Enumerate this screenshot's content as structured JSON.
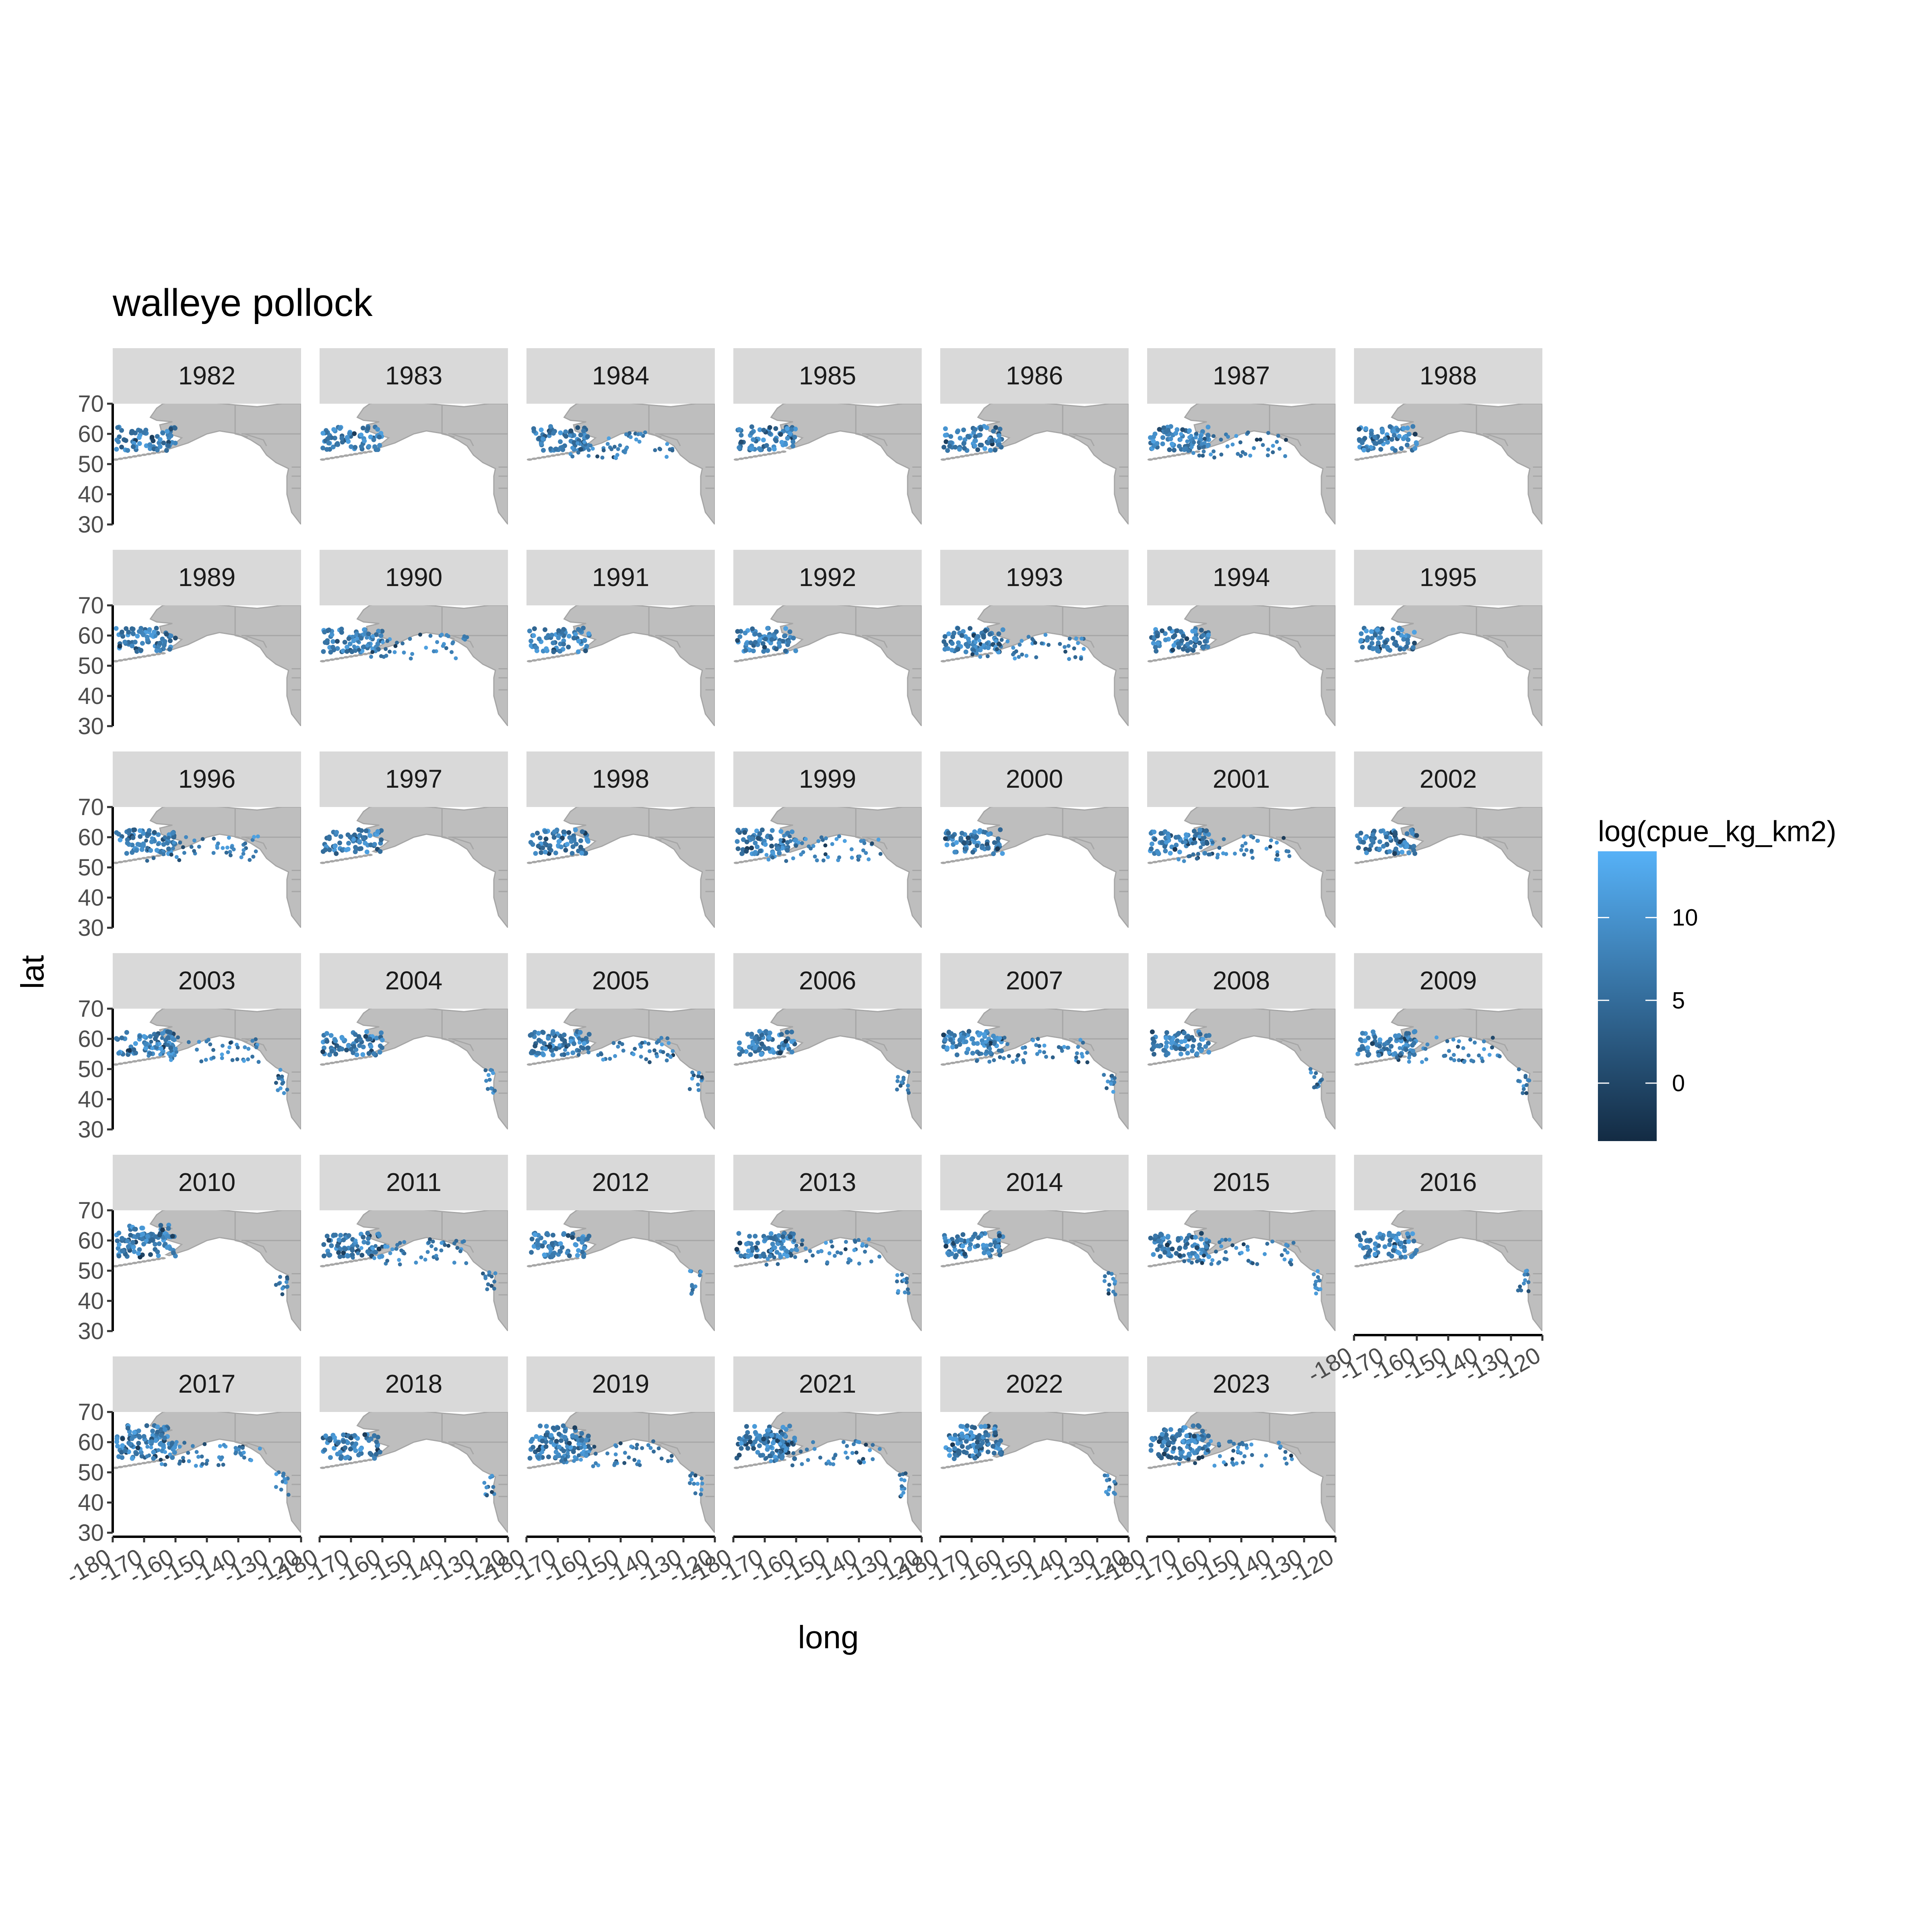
{
  "chart_data": {
    "type": "scatter",
    "subtype": "faceted map (small multiples by year)",
    "title": "walleye pollock",
    "xlabel": "long",
    "ylabel": "lat",
    "xlim": [
      -180,
      -120
    ],
    "ylim": [
      30,
      70
    ],
    "x_ticks": [
      -180,
      -170,
      -160,
      -150,
      -140,
      -130,
      -120
    ],
    "y_ticks": [
      30,
      40,
      50,
      60,
      70
    ],
    "grid": false,
    "facets": [
      "1982",
      "1983",
      "1984",
      "1985",
      "1986",
      "1987",
      "1988",
      "1989",
      "1990",
      "1991",
      "1992",
      "1993",
      "1994",
      "1995",
      "1996",
      "1997",
      "1998",
      "1999",
      "2000",
      "2001",
      "2002",
      "2003",
      "2004",
      "2005",
      "2006",
      "2007",
      "2008",
      "2009",
      "2010",
      "2011",
      "2012",
      "2013",
      "2014",
      "2015",
      "2016",
      "2017",
      "2018",
      "2019",
      "2021",
      "2022",
      "2023"
    ],
    "facet_columns": 7,
    "legend": {
      "title": "log(cpue_kg_km2)",
      "placement": "right",
      "breaks": [
        0,
        5,
        10
      ],
      "range": [
        -3.5,
        14
      ],
      "color_low": "#132b43",
      "color_high": "#56b1f7"
    },
    "colors": {
      "land": "#bebebe",
      "border": "#a6a6a6",
      "strip_fill": "#d9d9d9",
      "panel_bg": "#ffffff"
    },
    "survey_regions": {
      "EBS": {
        "lon": [
          -179,
          -160
        ],
        "lat": [
          54.5,
          62.5
        ],
        "years": "all"
      },
      "NBS": {
        "lon": [
          -176,
          -162
        ],
        "lat": [
          60,
          65.5
        ],
        "years": [
          "2010",
          "2017",
          "2019",
          "2021",
          "2022",
          "2023"
        ]
      },
      "GOA": {
        "lon": [
          -170,
          -133
        ],
        "lat": [
          52,
          60.5
        ],
        "years": [
          "1984",
          "1987",
          "1990",
          "1993",
          "1996",
          "1999",
          "2001",
          "2003",
          "2005",
          "2007",
          "2009",
          "2011",
          "2013",
          "2015",
          "2017",
          "2019",
          "2021",
          "2023"
        ]
      },
      "WC": {
        "lon": [
          -128,
          -124
        ],
        "lat": [
          42,
          50
        ],
        "years": [
          "2003",
          "2004",
          "2005",
          "2006",
          "2007",
          "2008",
          "2009",
          "2010",
          "2011",
          "2012",
          "2013",
          "2014",
          "2015",
          "2016",
          "2017",
          "2018",
          "2019",
          "2021",
          "2022"
        ]
      }
    }
  }
}
